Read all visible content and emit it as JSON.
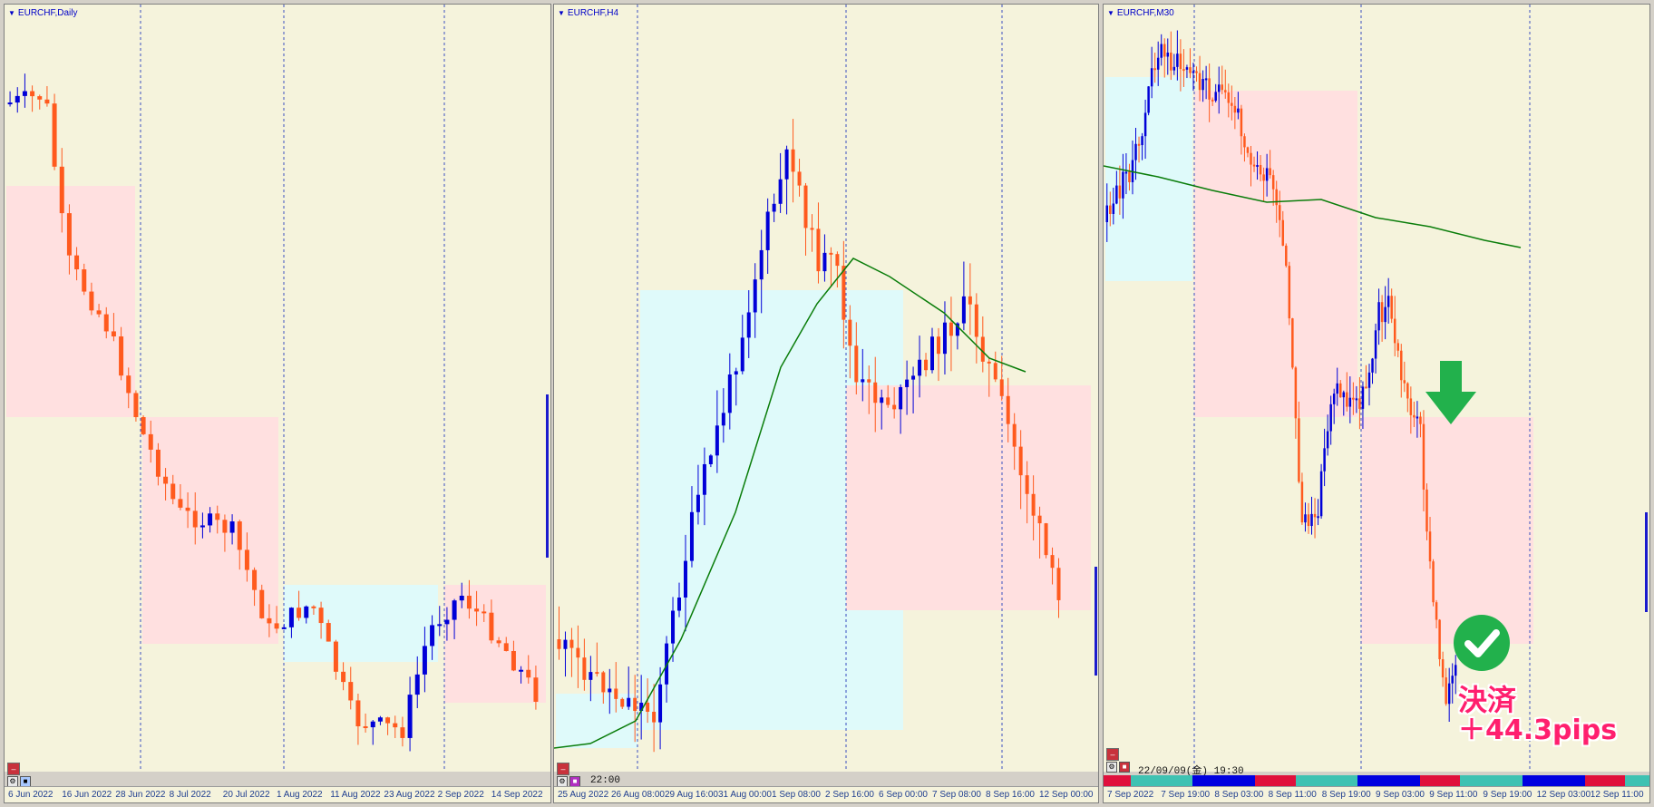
{
  "colors": {
    "background": "#f5f3dc",
    "bull": "#0000d8",
    "bear": "#ff5a1e",
    "demand_zone": "#dffafa",
    "supply_zone": "#ffe0e0",
    "ma_line": "#0a7d0a",
    "grid": "#3a4fc0",
    "status_teal": "#3fc2b2",
    "status_blue": "#0000e0",
    "status_red": "#e0103c",
    "check": "#22b14c",
    "pips_text": "#ff1f6e"
  },
  "panels": [
    {
      "title": "EURCHF,Daily",
      "x_labels": [
        "6 Jun 2022",
        "16 Jun 2022",
        "28 Jun 2022",
        "8 Jul 2022",
        "20 Jul 2022",
        "1 Aug 2022",
        "11 Aug 2022",
        "23 Aug 2022",
        "2 Sep 2022",
        "14 Sep 2022"
      ]
    },
    {
      "title": "EURCHF,H4",
      "current_time": "22:00",
      "x_labels": [
        "25 Aug 2022",
        "26 Aug 08:00",
        "29 Aug 16:00",
        "31 Aug 00:00",
        "1 Sep 08:00",
        "2 Sep 16:00",
        "6 Sep 00:00",
        "7 Sep 08:00",
        "8 Sep 16:00",
        "12 Sep 00:00"
      ]
    },
    {
      "title": "EURCHF,M30",
      "timestamp": "22/09/09(金) 19:30",
      "x_labels": [
        "7 Sep 2022",
        "7 Sep 19:00",
        "8 Sep 03:00",
        "8 Sep 11:00",
        "8 Sep 19:00",
        "9 Sep 03:00",
        "9 Sep 11:00",
        "9 Sep 19:00",
        "12 Sep 03:00",
        "12 Sep 11:00"
      ]
    }
  ],
  "overlay": {
    "result_label": "決済",
    "result_value": "＋44.3pips",
    "arrow_icon": "down-arrow-icon",
    "check_icon": "check-circle-icon"
  }
}
